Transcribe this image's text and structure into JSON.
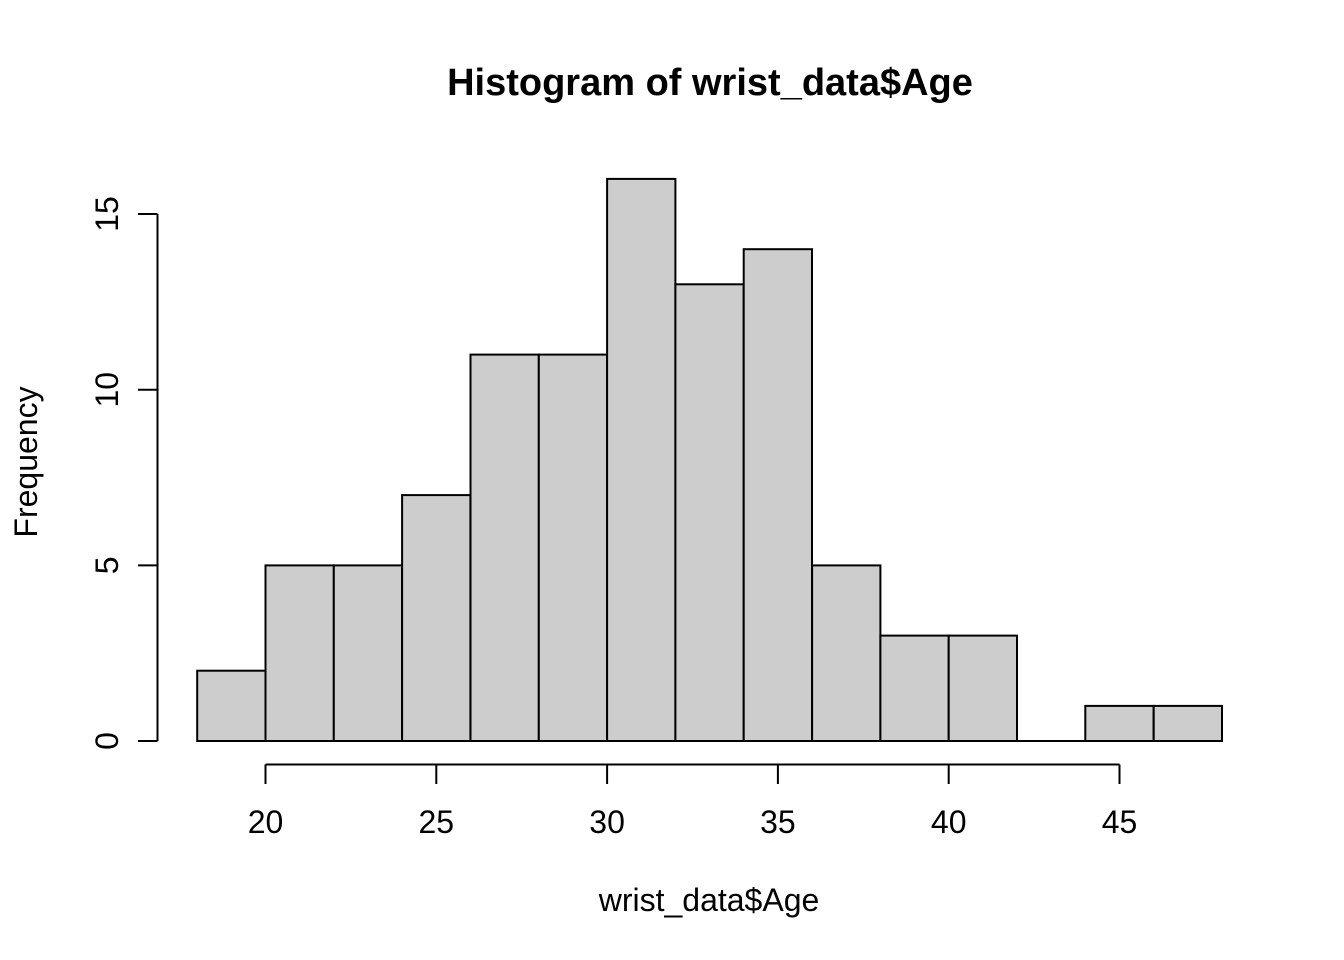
{
  "chart_data": {
    "type": "bar",
    "subtype": "histogram",
    "title": "Histogram of wrist_data$Age",
    "xlabel": "wrist_data$Age",
    "ylabel": "Frequency",
    "bin_width": 2,
    "bins": [
      {
        "from": 18,
        "to": 20,
        "count": 2
      },
      {
        "from": 20,
        "to": 22,
        "count": 5
      },
      {
        "from": 22,
        "to": 24,
        "count": 5
      },
      {
        "from": 24,
        "to": 26,
        "count": 7
      },
      {
        "from": 26,
        "to": 28,
        "count": 11
      },
      {
        "from": 28,
        "to": 30,
        "count": 11
      },
      {
        "from": 30,
        "to": 32,
        "count": 16
      },
      {
        "from": 32,
        "to": 34,
        "count": 13
      },
      {
        "from": 34,
        "to": 36,
        "count": 14
      },
      {
        "from": 36,
        "to": 38,
        "count": 5
      },
      {
        "from": 38,
        "to": 40,
        "count": 3
      },
      {
        "from": 40,
        "to": 42,
        "count": 3
      },
      {
        "from": 42,
        "to": 44,
        "count": 0
      },
      {
        "from": 44,
        "to": 46,
        "count": 1
      },
      {
        "from": 46,
        "to": 48,
        "count": 1
      }
    ],
    "categories": [
      "18-20",
      "20-22",
      "22-24",
      "24-26",
      "26-28",
      "28-30",
      "30-32",
      "32-34",
      "34-36",
      "36-38",
      "38-40",
      "40-42",
      "42-44",
      "44-46",
      "46-48"
    ],
    "values": [
      2,
      5,
      5,
      7,
      11,
      11,
      16,
      13,
      14,
      5,
      3,
      3,
      0,
      1,
      1
    ],
    "x_ticks": [
      20,
      25,
      30,
      35,
      40,
      45
    ],
    "y_ticks": [
      0,
      5,
      10,
      15
    ],
    "xlim": [
      18,
      48
    ],
    "ylim": [
      0,
      16
    ],
    "grid": false,
    "legend_position": "none",
    "bar_fill": "#cdcdcd",
    "bar_stroke": "#000000",
    "axis_color": "#000000",
    "text_color": "#000000",
    "background": "#ffffff"
  }
}
